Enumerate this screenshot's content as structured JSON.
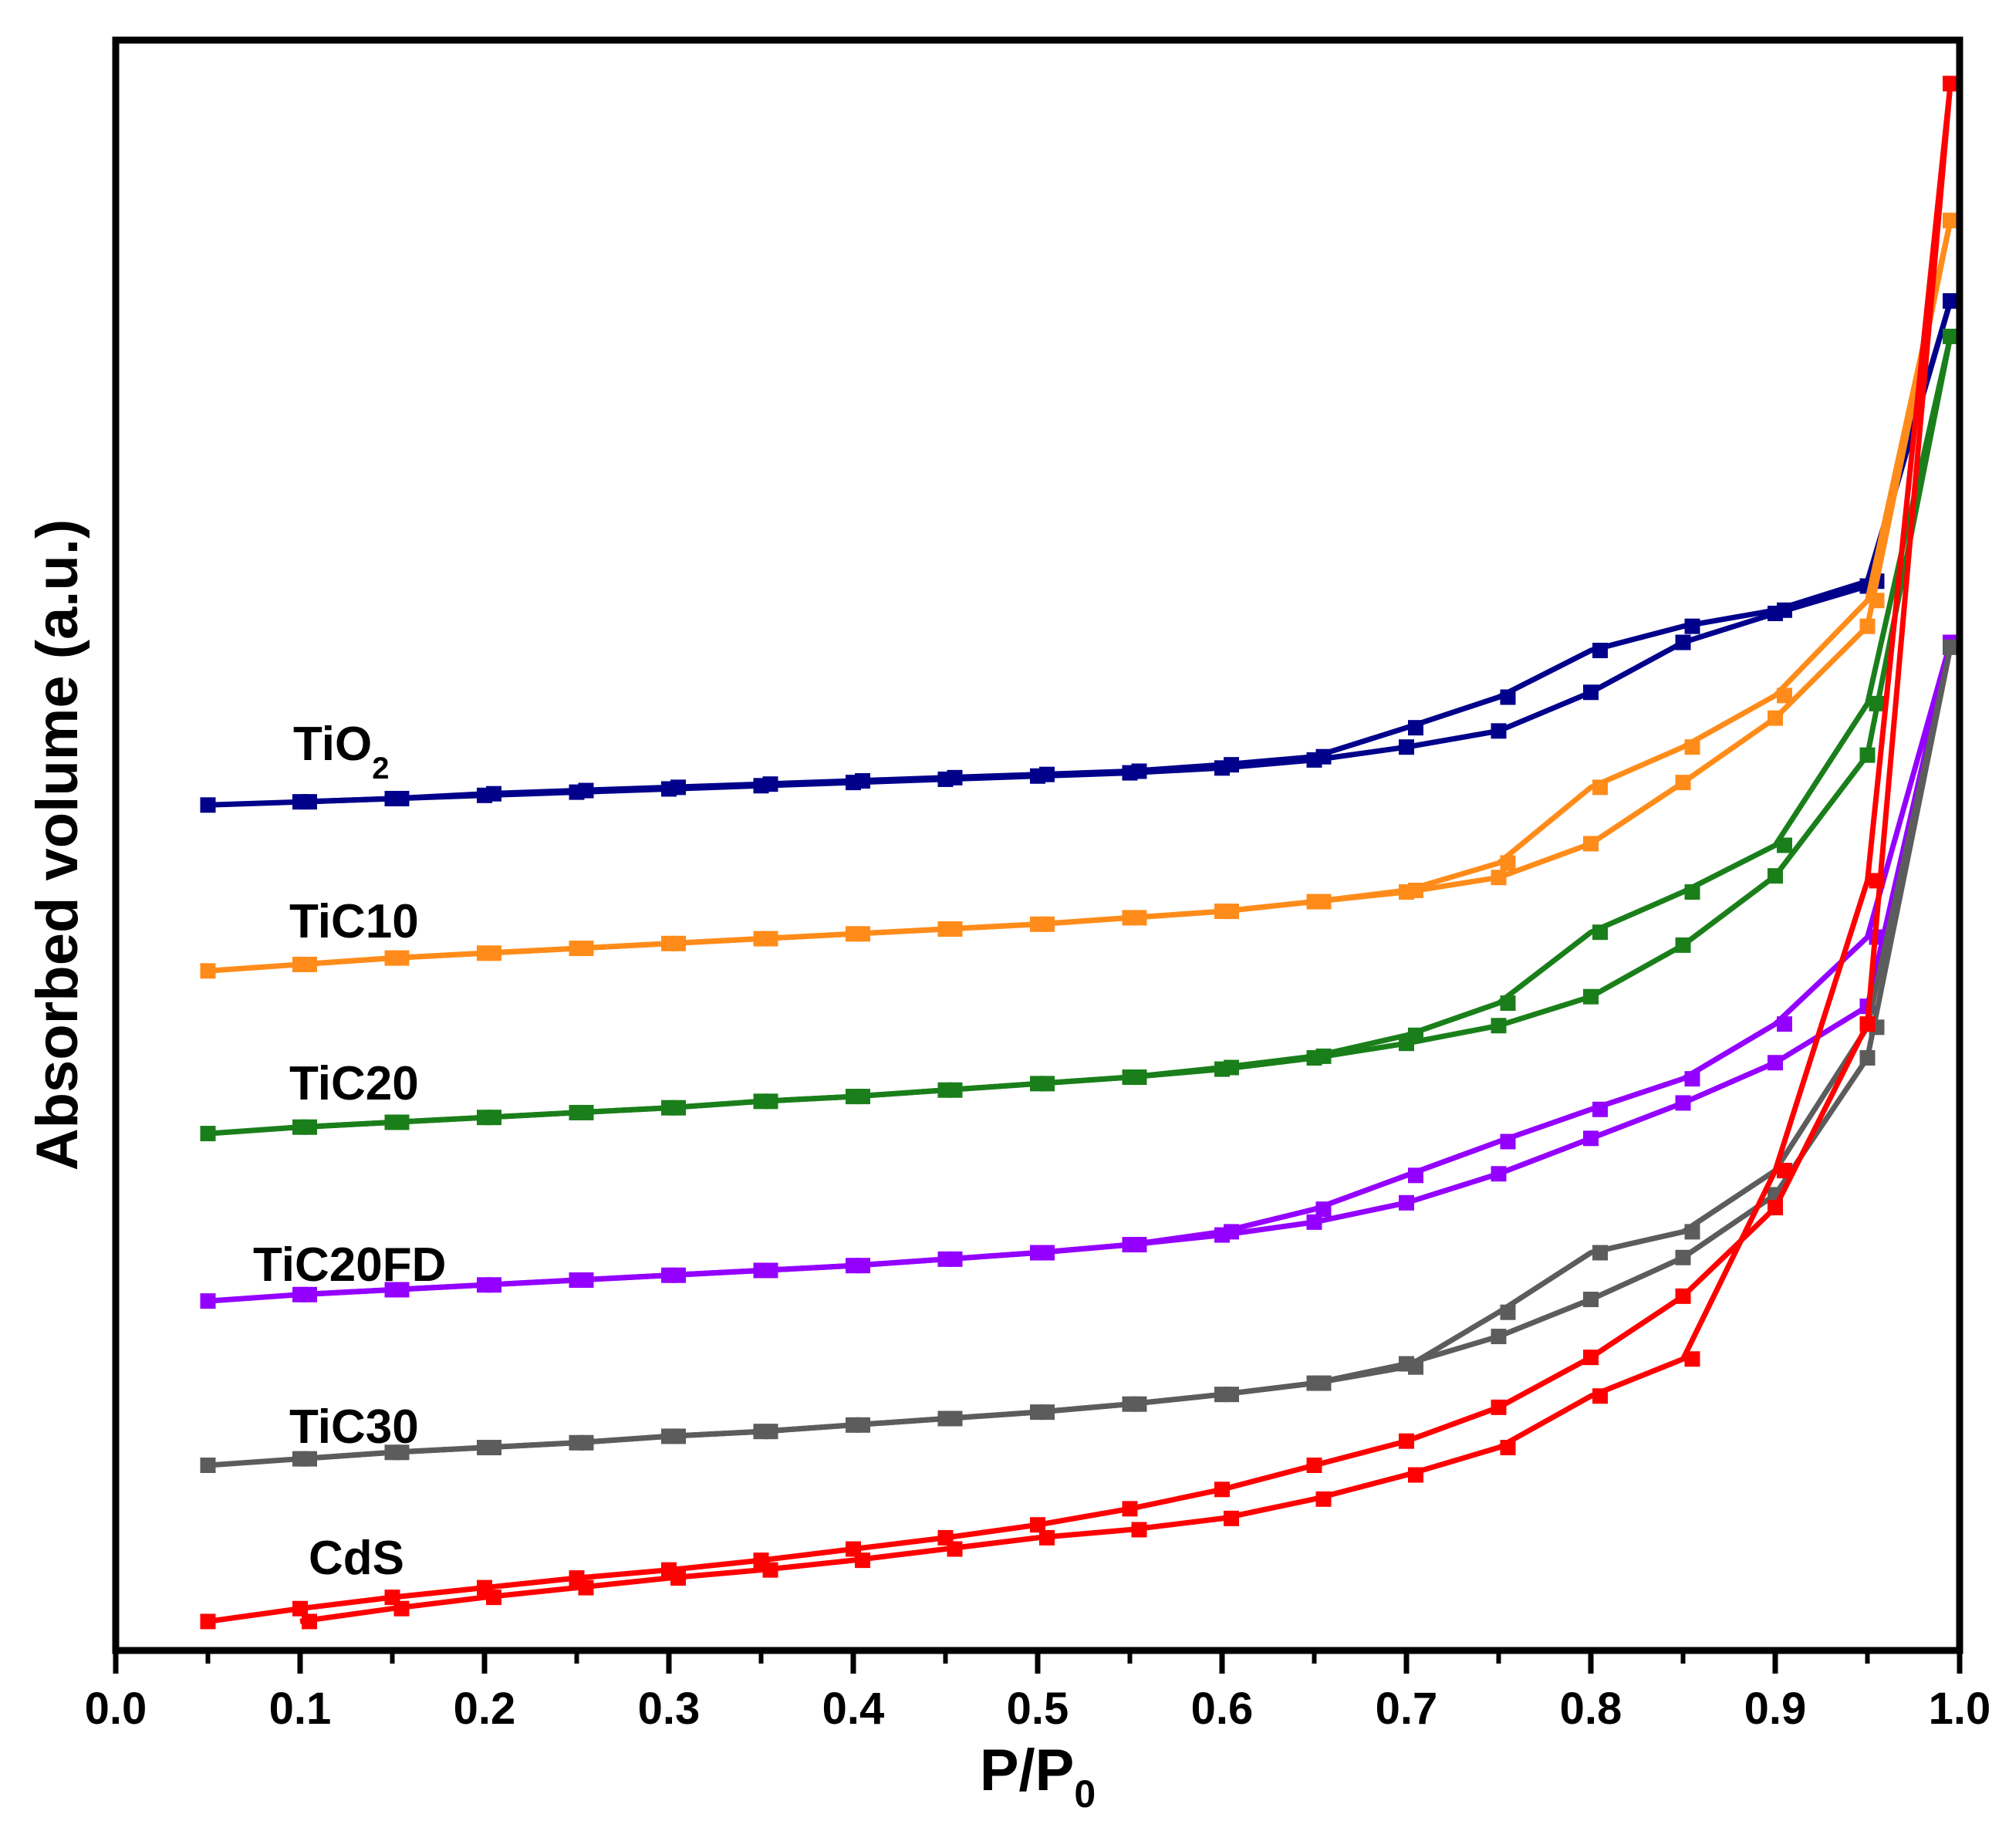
{
  "chart_data": {
    "type": "line",
    "title": "",
    "xlabel": "P/P",
    "xlabel_sub": "0",
    "ylabel": "Absorbed volume (a.u.)",
    "xlim": [
      0.0,
      1.0
    ],
    "ylim": [
      0,
      100
    ],
    "x_ticks": [
      "0.0",
      "0.1",
      "0.2",
      "0.3",
      "0.4",
      "0.5",
      "0.6",
      "0.7",
      "0.8",
      "0.9",
      "1.0"
    ],
    "y_ticks_shown": false,
    "grid": false,
    "legend": "inline labels on left",
    "series": [
      {
        "name": "TiO2",
        "label_main": "TiO",
        "label_sub": "2",
        "color": "#00008B",
        "adsorption": {
          "x": [
            0.05,
            0.1,
            0.15,
            0.2,
            0.25,
            0.3,
            0.35,
            0.4,
            0.45,
            0.5,
            0.55,
            0.6,
            0.65,
            0.7,
            0.75,
            0.8,
            0.85,
            0.9,
            0.95,
            0.995
          ],
          "y": [
            52.5,
            52.7,
            52.9,
            53.1,
            53.3,
            53.5,
            53.7,
            53.9,
            54.1,
            54.3,
            54.5,
            54.8,
            55.3,
            56.1,
            57.1,
            59.5,
            62.6,
            64.4,
            66.1,
            83.8
          ]
        },
        "desorption": {
          "x": [
            0.995,
            0.95,
            0.9,
            0.85,
            0.8,
            0.75,
            0.7,
            0.65,
            0.6,
            0.55,
            0.5,
            0.45,
            0.4,
            0.35,
            0.3,
            0.25,
            0.2,
            0.15,
            0.1
          ],
          "y": [
            83.8,
            66.4,
            64.6,
            63.6,
            62.1,
            59.2,
            57.3,
            55.5,
            55.0,
            54.6,
            54.4,
            54.2,
            54.0,
            53.8,
            53.6,
            53.4,
            53.2,
            52.9,
            52.7
          ]
        }
      },
      {
        "name": "TiC10",
        "label_main": "TiC10",
        "label_sub": "",
        "color": "#FF8C1A",
        "adsorption": {
          "x": [
            0.05,
            0.1,
            0.15,
            0.2,
            0.25,
            0.3,
            0.35,
            0.4,
            0.45,
            0.5,
            0.55,
            0.6,
            0.65,
            0.7,
            0.75,
            0.8,
            0.85,
            0.9,
            0.95,
            0.995
          ],
          "y": [
            42.2,
            42.6,
            43.0,
            43.3,
            43.6,
            43.9,
            44.2,
            44.5,
            44.8,
            45.1,
            45.5,
            45.9,
            46.5,
            47.1,
            48.0,
            50.1,
            53.9,
            57.9,
            63.6,
            88.8
          ]
        },
        "desorption": {
          "x": [
            0.995,
            0.95,
            0.9,
            0.85,
            0.8,
            0.75,
            0.7,
            0.65,
            0.6,
            0.55,
            0.5,
            0.45,
            0.4,
            0.35,
            0.3,
            0.25,
            0.2,
            0.15,
            0.1
          ],
          "y": [
            88.8,
            65.2,
            59.3,
            56.1,
            53.6,
            48.9,
            47.2,
            46.5,
            45.9,
            45.5,
            45.1,
            44.8,
            44.5,
            44.2,
            43.9,
            43.6,
            43.3,
            43.0,
            42.6
          ]
        }
      },
      {
        "name": "TiC20",
        "label_main": "TiC20",
        "label_sub": "",
        "color": "#1A7F1A",
        "adsorption": {
          "x": [
            0.05,
            0.1,
            0.15,
            0.2,
            0.25,
            0.3,
            0.35,
            0.4,
            0.45,
            0.5,
            0.55,
            0.6,
            0.65,
            0.7,
            0.75,
            0.8,
            0.85,
            0.9,
            0.95,
            0.995
          ],
          "y": [
            32.1,
            32.5,
            32.8,
            33.1,
            33.4,
            33.7,
            34.1,
            34.4,
            34.8,
            35.2,
            35.6,
            36.1,
            36.8,
            37.7,
            38.8,
            40.6,
            43.8,
            48.1,
            55.6,
            81.6
          ]
        },
        "desorption": {
          "x": [
            0.995,
            0.95,
            0.9,
            0.85,
            0.8,
            0.75,
            0.7,
            0.65,
            0.6,
            0.55,
            0.5,
            0.45,
            0.4,
            0.35,
            0.3,
            0.25,
            0.2,
            0.15,
            0.1
          ],
          "y": [
            81.6,
            58.8,
            50.0,
            47.1,
            44.6,
            40.2,
            38.2,
            36.9,
            36.2,
            35.6,
            35.2,
            34.8,
            34.4,
            34.1,
            33.7,
            33.4,
            33.1,
            32.8,
            32.5
          ]
        }
      },
      {
        "name": "TiC20FD",
        "label_main": "TiC20FD",
        "label_sub": "",
        "color": "#9400FF",
        "adsorption": {
          "x": [
            0.05,
            0.1,
            0.15,
            0.2,
            0.25,
            0.3,
            0.35,
            0.4,
            0.45,
            0.5,
            0.55,
            0.6,
            0.65,
            0.7,
            0.75,
            0.8,
            0.85,
            0.9,
            0.95,
            0.995
          ],
          "y": [
            21.7,
            22.1,
            22.4,
            22.7,
            23.0,
            23.3,
            23.6,
            23.9,
            24.3,
            24.7,
            25.2,
            25.8,
            26.6,
            27.8,
            29.6,
            31.8,
            34.0,
            36.5,
            40.0,
            62.6
          ]
        },
        "desorption": {
          "x": [
            0.995,
            0.95,
            0.9,
            0.85,
            0.8,
            0.75,
            0.7,
            0.65,
            0.6,
            0.55,
            0.5,
            0.45,
            0.4,
            0.35,
            0.3,
            0.25,
            0.2,
            0.15,
            0.1
          ],
          "y": [
            62.6,
            44.3,
            38.9,
            35.5,
            33.6,
            31.6,
            29.5,
            27.4,
            26.0,
            25.2,
            24.7,
            24.3,
            23.9,
            23.6,
            23.3,
            23.0,
            22.7,
            22.4,
            22.1
          ]
        }
      },
      {
        "name": "TiC30",
        "label_main": "TiC30",
        "label_sub": "",
        "color": "#5C5C5C",
        "adsorption": {
          "x": [
            0.05,
            0.1,
            0.15,
            0.2,
            0.25,
            0.3,
            0.35,
            0.4,
            0.45,
            0.5,
            0.55,
            0.6,
            0.65,
            0.7,
            0.75,
            0.8,
            0.85,
            0.9,
            0.95,
            0.995
          ],
          "y": [
            11.5,
            11.9,
            12.3,
            12.6,
            12.9,
            13.3,
            13.6,
            14.0,
            14.4,
            14.8,
            15.3,
            15.9,
            16.6,
            17.8,
            19.5,
            21.8,
            24.4,
            28.3,
            36.8,
            62.3
          ]
        },
        "desorption": {
          "x": [
            0.995,
            0.95,
            0.9,
            0.85,
            0.8,
            0.75,
            0.7,
            0.65,
            0.6,
            0.55,
            0.5,
            0.45,
            0.4,
            0.35,
            0.3,
            0.25,
            0.2,
            0.15,
            0.1
          ],
          "y": [
            62.3,
            38.7,
            29.8,
            26.0,
            24.7,
            21.0,
            17.6,
            16.6,
            15.9,
            15.3,
            14.8,
            14.4,
            14.0,
            13.6,
            13.3,
            12.9,
            12.6,
            12.3,
            11.9
          ]
        }
      },
      {
        "name": "CdS",
        "label_main": "CdS",
        "label_sub": "",
        "color": "#FF0000",
        "adsorption": {
          "x": [
            0.05,
            0.1,
            0.15,
            0.2,
            0.25,
            0.3,
            0.35,
            0.4,
            0.45,
            0.5,
            0.55,
            0.6,
            0.65,
            0.7,
            0.75,
            0.8,
            0.85,
            0.9,
            0.95,
            0.995
          ],
          "y": [
            1.8,
            2.6,
            3.3,
            3.9,
            4.5,
            5.0,
            5.6,
            6.3,
            7.0,
            7.8,
            8.8,
            10.0,
            11.5,
            13.0,
            15.1,
            18.2,
            22.0,
            27.5,
            38.9,
            97.3
          ]
        },
        "desorption": {
          "x": [
            0.995,
            0.95,
            0.9,
            0.85,
            0.8,
            0.75,
            0.7,
            0.65,
            0.6,
            0.55,
            0.5,
            0.45,
            0.4,
            0.35,
            0.3,
            0.25,
            0.2,
            0.15,
            0.1
          ],
          "y": [
            97.3,
            47.8,
            29.8,
            18.1,
            15.8,
            12.6,
            10.9,
            9.4,
            8.2,
            7.5,
            7.0,
            6.3,
            5.6,
            5.0,
            4.5,
            3.9,
            3.3,
            2.6,
            1.8
          ]
        }
      }
    ]
  }
}
